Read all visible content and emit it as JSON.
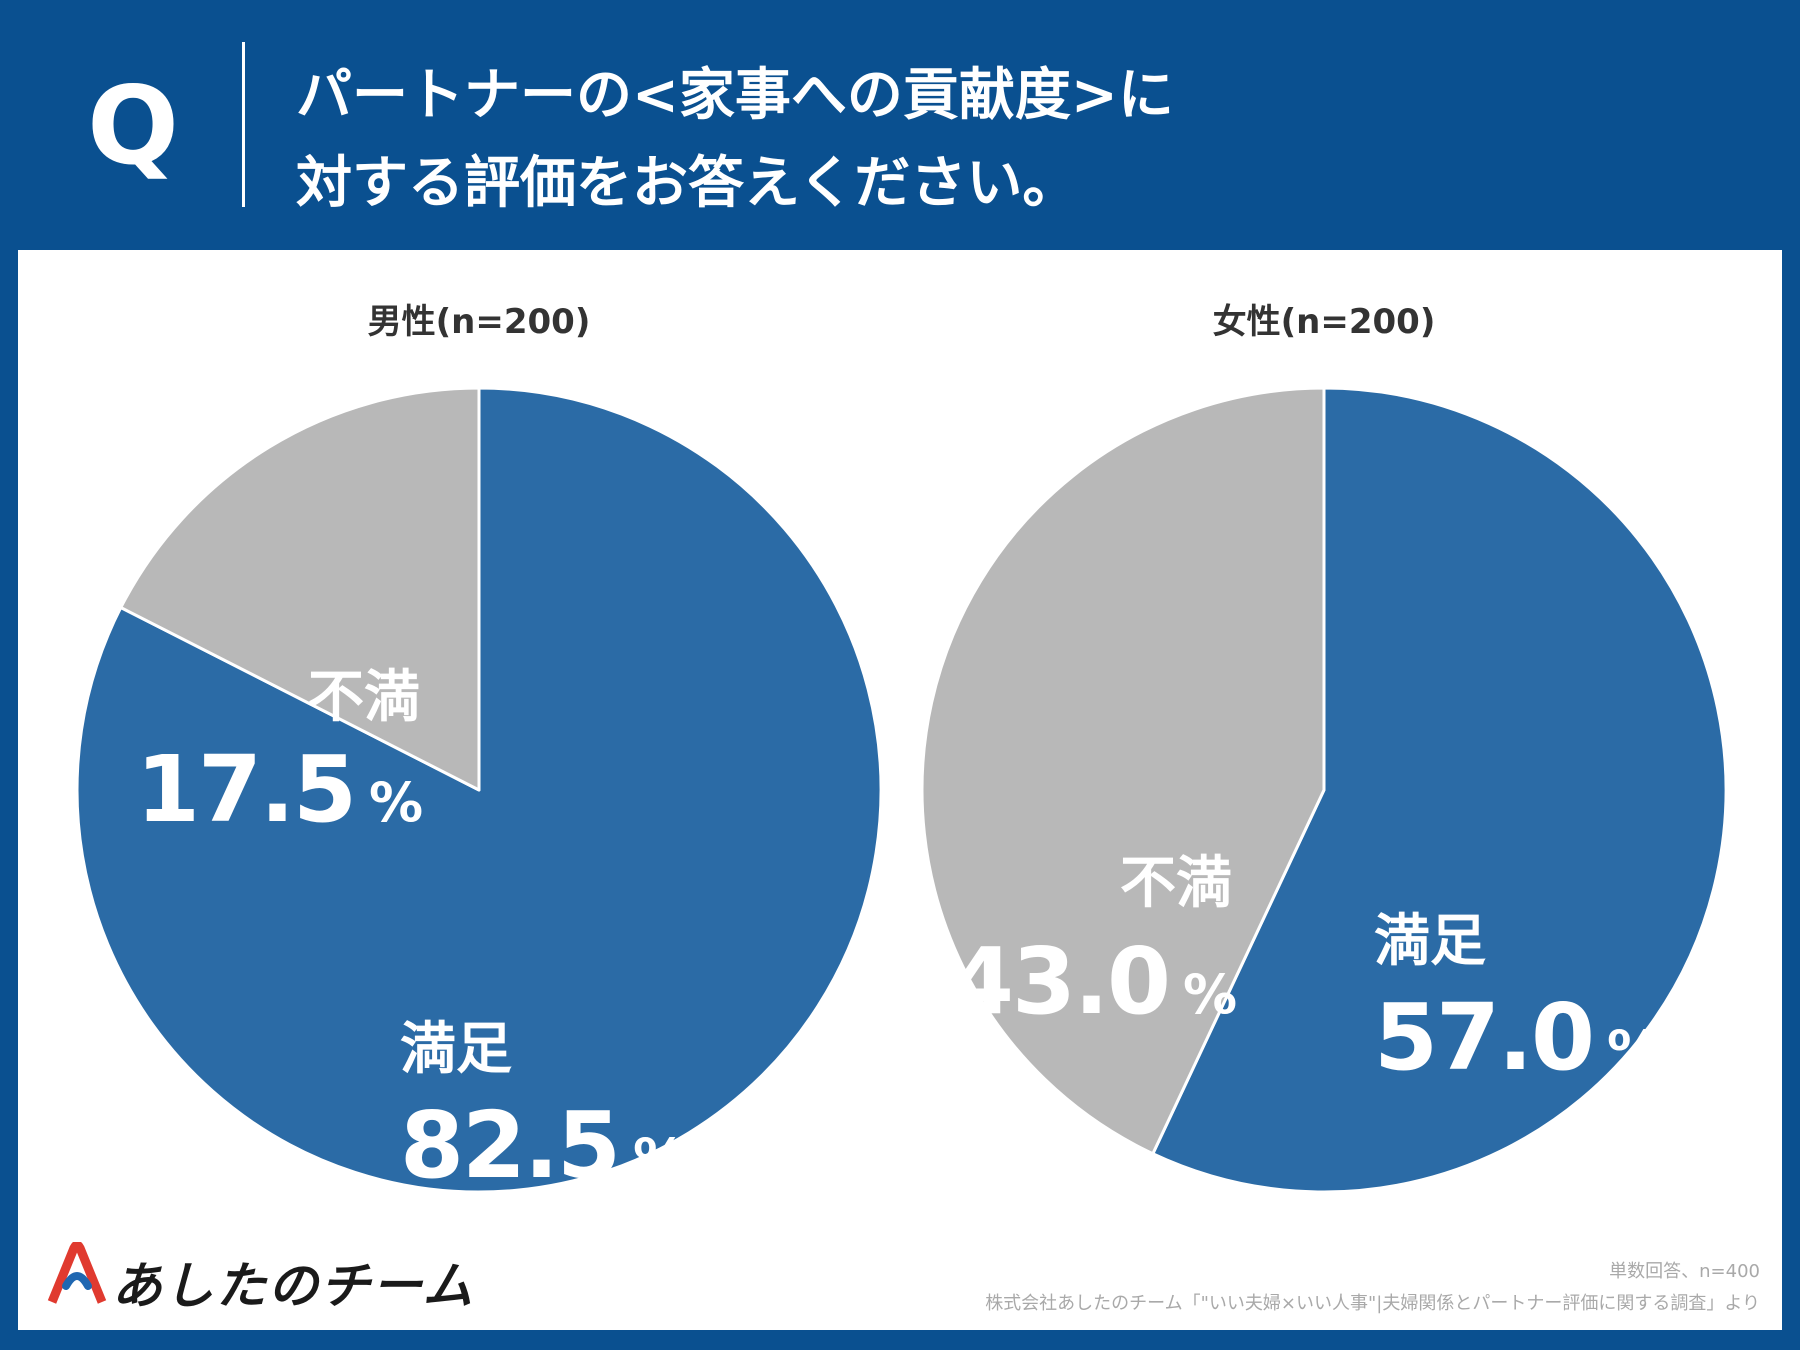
{
  "header": {
    "q_label": "Q",
    "question_line1": "パートナーの<家事への貢献度>に",
    "question_line2": "対する評価をお答えください。"
  },
  "chart_data": [
    {
      "type": "pie",
      "title": "男性(n=200)",
      "slices": [
        {
          "label": "満足",
          "value": 82.5,
          "display": "82.5",
          "unit": "%",
          "color": "#2b6ba6"
        },
        {
          "label": "不満",
          "value": 17.5,
          "display": "17.5",
          "unit": "%",
          "color": "#b8b8b8"
        }
      ]
    },
    {
      "type": "pie",
      "title": "女性(n=200)",
      "slices": [
        {
          "label": "満足",
          "value": 57.0,
          "display": "57.0",
          "unit": "%",
          "color": "#2b6ba6"
        },
        {
          "label": "不満",
          "value": 43.0,
          "display": "43.0",
          "unit": "%",
          "color": "#b8b8b8"
        }
      ]
    }
  ],
  "footer": {
    "logo_text": "あしたのチーム",
    "note1": "単数回答、n=400",
    "note2": "株式会社あしたのチーム「\"いい夫婦×いい人事\"|夫婦関係とパートナー評価に関する調査」より"
  },
  "colors": {
    "header_bg": "#0a5090",
    "satisfied": "#2b6ba6",
    "dissatisfied": "#b8b8b8"
  }
}
